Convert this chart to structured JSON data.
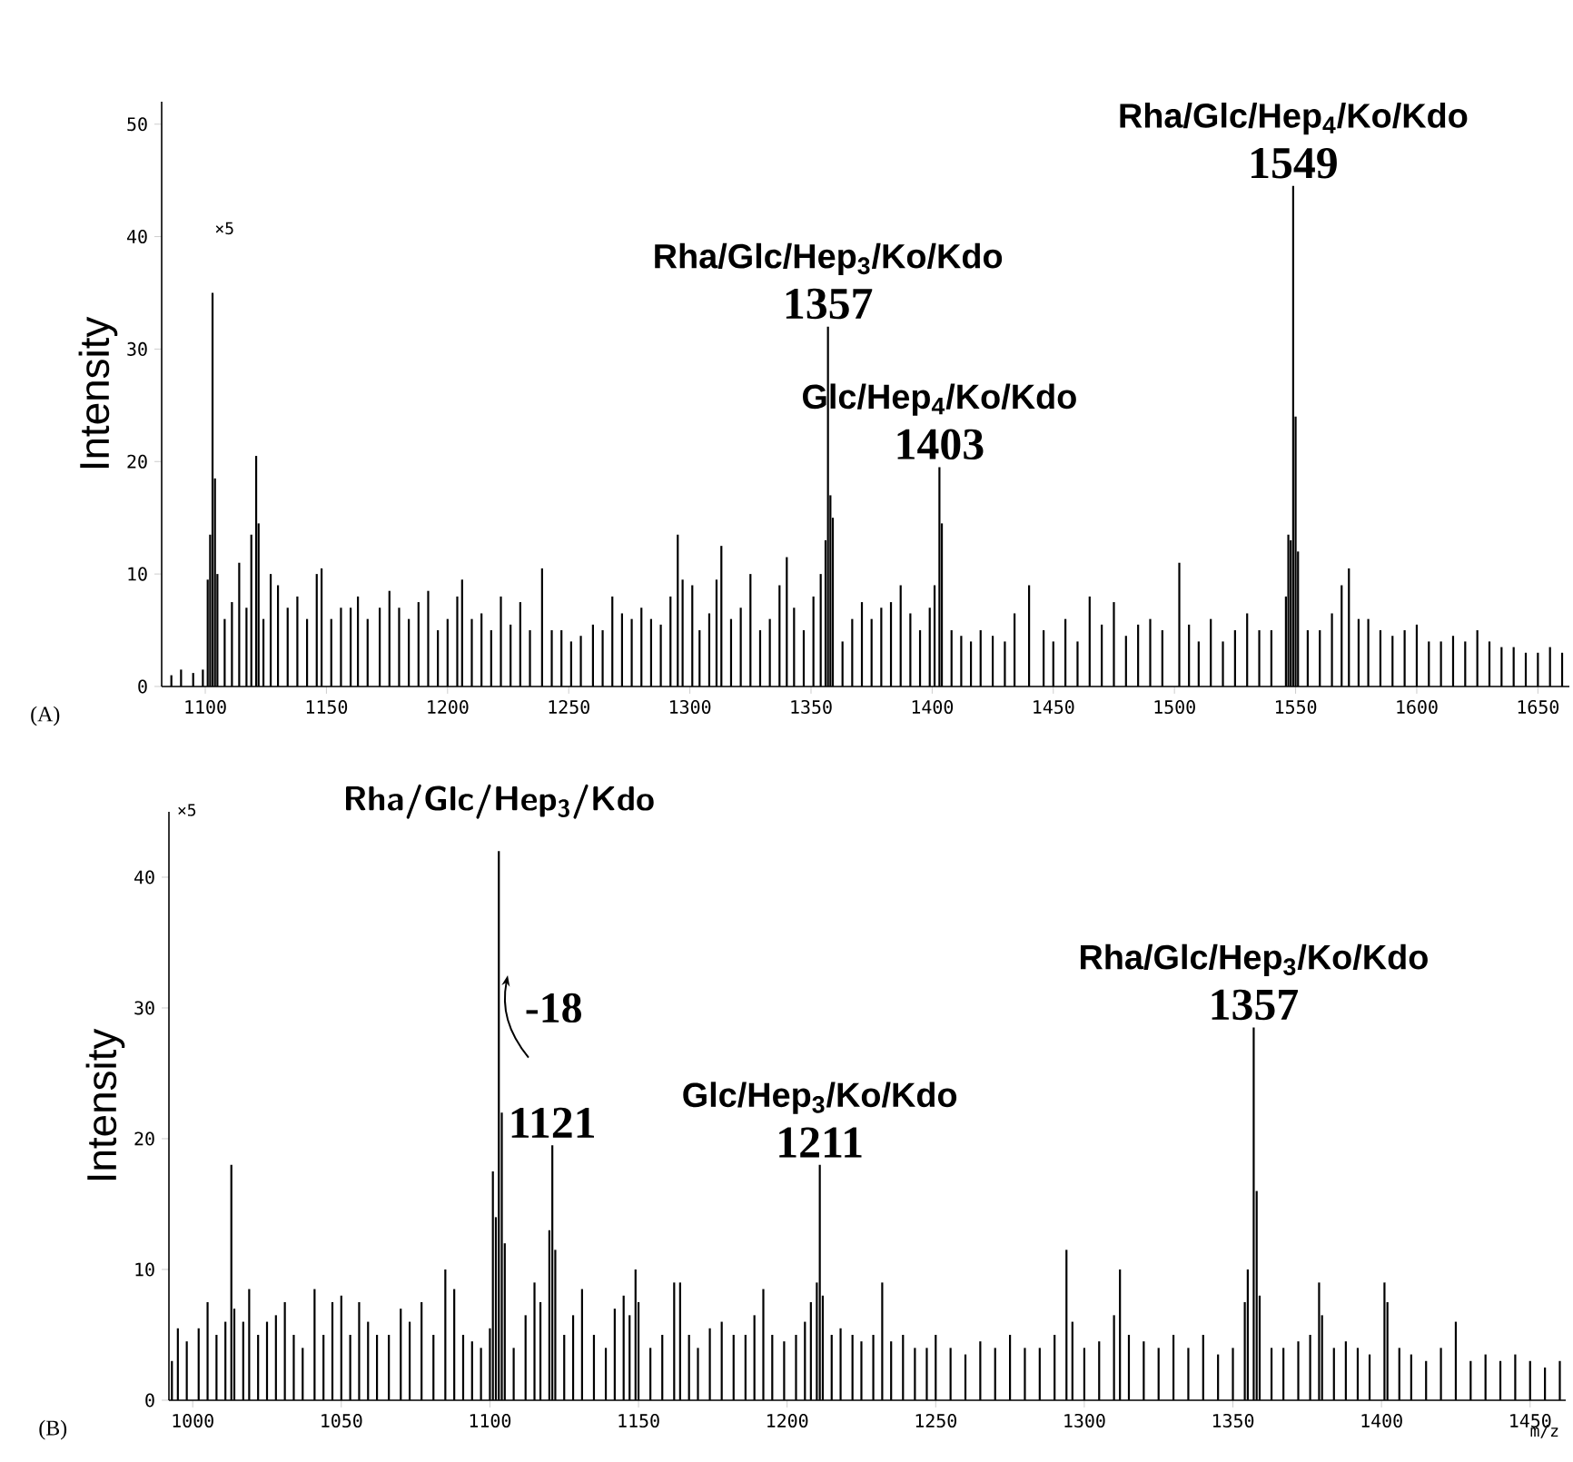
{
  "chart_data": [
    {
      "type": "bar",
      "ylabel": "Intensity",
      "color": "#000000",
      "xlim": [
        1082,
        1663
      ],
      "ylim": [
        0,
        52
      ],
      "xticks": [
        1100,
        1150,
        1200,
        1250,
        1300,
        1350,
        1400,
        1450,
        1500,
        1550,
        1600,
        1650
      ],
      "yticks": [
        0,
        10,
        20,
        30,
        40,
        50
      ],
      "x": [
        1086,
        1090,
        1095,
        1099,
        1101,
        1102,
        1103,
        1104,
        1105,
        1108,
        1111,
        1114,
        1117,
        1119,
        1121,
        1122,
        1124,
        1127,
        1130,
        1134,
        1138,
        1142,
        1146,
        1148,
        1152,
        1156,
        1160,
        1163,
        1167,
        1172,
        1176,
        1180,
        1184,
        1188,
        1192,
        1196,
        1200,
        1204,
        1206,
        1210,
        1214,
        1218,
        1222,
        1226,
        1230,
        1234,
        1239,
        1243,
        1247,
        1251,
        1255,
        1260,
        1264,
        1268,
        1272,
        1276,
        1280,
        1284,
        1288,
        1292,
        1295,
        1297,
        1301,
        1304,
        1308,
        1311,
        1313,
        1317,
        1321,
        1325,
        1329,
        1333,
        1337,
        1340,
        1343,
        1347,
        1351,
        1354,
        1356,
        1357,
        1358,
        1359,
        1363,
        1367,
        1371,
        1375,
        1379,
        1383,
        1387,
        1391,
        1395,
        1399,
        1401,
        1403,
        1404,
        1408,
        1412,
        1416,
        1420,
        1425,
        1430,
        1434,
        1440,
        1446,
        1450,
        1455,
        1460,
        1465,
        1470,
        1475,
        1480,
        1485,
        1490,
        1495,
        1502,
        1506,
        1510,
        1515,
        1520,
        1525,
        1530,
        1535,
        1540,
        1546,
        1547,
        1548,
        1549,
        1550,
        1551,
        1555,
        1560,
        1565,
        1569,
        1572,
        1576,
        1580,
        1585,
        1590,
        1595,
        1600,
        1605,
        1610,
        1615,
        1620,
        1625,
        1630,
        1635,
        1640,
        1645,
        1650,
        1655,
        1660
      ],
      "values": [
        1,
        1.5,
        1.2,
        1.5,
        9.5,
        13.5,
        35,
        18.5,
        10,
        6,
        7.5,
        11,
        7,
        13.5,
        20.5,
        14.5,
        6,
        10,
        9,
        7,
        8,
        6,
        10,
        10.5,
        6,
        7,
        7,
        8,
        6,
        7,
        8.5,
        7,
        6,
        7.5,
        8.5,
        5,
        6,
        8,
        9.5,
        6,
        6.5,
        5,
        8,
        5.5,
        7.5,
        5,
        10.5,
        5,
        5,
        4,
        4.5,
        5.5,
        5,
        8,
        6.5,
        6,
        7,
        6,
        5.5,
        8,
        13.5,
        9.5,
        9,
        5,
        6.5,
        9.5,
        12.5,
        6,
        7,
        10,
        5,
        6,
        9,
        11.5,
        7,
        5,
        8,
        10,
        13,
        32,
        17,
        15,
        4,
        6,
        7.5,
        6,
        7,
        7.5,
        9,
        6.5,
        5,
        7,
        9,
        19.5,
        14.5,
        5,
        4.5,
        4,
        5,
        4.5,
        4,
        6.5,
        9,
        5,
        4,
        6,
        4,
        8,
        5.5,
        7.5,
        4.5,
        5.5,
        6,
        5,
        11,
        5.5,
        4,
        6,
        4,
        5,
        6.5,
        5,
        5,
        8,
        13.5,
        13,
        44.5,
        24,
        12,
        5,
        5,
        6.5,
        9,
        10.5,
        6,
        6,
        5,
        4.5,
        5,
        5.5,
        4,
        4,
        4.5,
        4,
        5,
        4,
        3.5,
        3.5,
        3,
        3,
        3.5,
        3
      ],
      "annotations": [
        "×5",
        "(A)",
        {
          "text": "Rha/Glc/Hep$_{3}$/Ko/Kdo",
          "x": 1357,
          "y": 32
        },
        {
          "text": "1357",
          "x": 1357,
          "y": 32
        },
        {
          "text": "Glc/Hep$_{4}$/Ko/Kdo",
          "x": 1403,
          "y": 19.5
        },
        {
          "text": "1403",
          "x": 1403,
          "y": 19.5
        },
        {
          "text": "Rha/Glc/Hep$_{4}$/Ko/Kdo",
          "x": 1549,
          "y": 44.5
        },
        {
          "text": "1549",
          "x": 1549,
          "y": 44.5
        }
      ]
    },
    {
      "type": "bar",
      "ylabel": "Intensity",
      "xlabel": "m/z",
      "color": "#000000",
      "xlim": [
        992,
        1462
      ],
      "ylim": [
        0,
        45
      ],
      "xticks": [
        1000,
        1050,
        1100,
        1150,
        1200,
        1250,
        1300,
        1350,
        1400,
        1450
      ],
      "yticks": [
        0,
        10,
        20,
        30,
        40
      ],
      "x": [
        993,
        995,
        998,
        1002,
        1005,
        1008,
        1011,
        1013,
        1014,
        1017,
        1019,
        1022,
        1025,
        1028,
        1031,
        1034,
        1037,
        1041,
        1044,
        1047,
        1050,
        1053,
        1056,
        1059,
        1062,
        1066,
        1070,
        1073,
        1077,
        1081,
        1085,
        1088,
        1091,
        1094,
        1097,
        1100,
        1101,
        1102,
        1103,
        1104,
        1105,
        1108,
        1112,
        1115,
        1117,
        1120,
        1121,
        1122,
        1125,
        1128,
        1131,
        1135,
        1139,
        1142,
        1145,
        1147,
        1149,
        1150,
        1154,
        1158,
        1162,
        1164,
        1167,
        1170,
        1174,
        1178,
        1182,
        1186,
        1189,
        1192,
        1195,
        1199,
        1203,
        1206,
        1208,
        1210,
        1211,
        1212,
        1215,
        1218,
        1222,
        1225,
        1229,
        1232,
        1235,
        1239,
        1243,
        1247,
        1250,
        1255,
        1260,
        1265,
        1270,
        1275,
        1280,
        1285,
        1290,
        1294,
        1296,
        1300,
        1305,
        1310,
        1312,
        1315,
        1320,
        1325,
        1330,
        1335,
        1340,
        1345,
        1350,
        1354,
        1355,
        1357,
        1358,
        1359,
        1363,
        1367,
        1372,
        1376,
        1379,
        1380,
        1384,
        1388,
        1392,
        1396,
        1401,
        1402,
        1406,
        1410,
        1415,
        1420,
        1425,
        1430,
        1435,
        1440,
        1445,
        1450,
        1455,
        1460
      ],
      "values": [
        3,
        5.5,
        4.5,
        5.5,
        7.5,
        5,
        6,
        18,
        7,
        6,
        8.5,
        5,
        6,
        6.5,
        7.5,
        5,
        4,
        8.5,
        5,
        7.5,
        8,
        5,
        7.5,
        6,
        5,
        5,
        7,
        6,
        7.5,
        5,
        10,
        8.5,
        5,
        4.5,
        4,
        5.5,
        17.5,
        14,
        42,
        22,
        12,
        4,
        6.5,
        9,
        7.5,
        13,
        19.5,
        11.5,
        5,
        6.5,
        8.5,
        5,
        4,
        7,
        8,
        6.5,
        10,
        7.5,
        4,
        5,
        9,
        9,
        5,
        4,
        5.5,
        6,
        5,
        5,
        6.5,
        8.5,
        5,
        4.5,
        5,
        6,
        7.5,
        9,
        18,
        8,
        5,
        5.5,
        5,
        4.5,
        5,
        9,
        4.5,
        5,
        4,
        4,
        5,
        4,
        3.5,
        4.5,
        4,
        5,
        4,
        4,
        5,
        11.5,
        6,
        4,
        4.5,
        6.5,
        10,
        5,
        4.5,
        4,
        5,
        4,
        5,
        3.5,
        4,
        7.5,
        10,
        28.5,
        16,
        8,
        4,
        4,
        4.5,
        5,
        9,
        6.5,
        4,
        4.5,
        4,
        3.5,
        9,
        7.5,
        4,
        3.5,
        3,
        4,
        6,
        3,
        3.5,
        3,
        3.5,
        3,
        2.5,
        3
      ],
      "annotations": [
        "×5",
        "Rha/Glc/Hep$_{3}$/Kdo",
        "-18",
        "(B)",
        {
          "text": "1121",
          "x": 1121,
          "y": 19.5
        },
        {
          "text": "Glc/Hep$_{3}$/Ko/Kdo",
          "x": 1211,
          "y": 18
        },
        {
          "text": "1211",
          "x": 1211,
          "y": 18
        },
        {
          "text": "Rha/Glc/Hep$_{3}$/Ko/Kdo",
          "x": 1357,
          "y": 28.5
        },
        {
          "text": "1357",
          "x": 1357,
          "y": 28.5
        }
      ]
    }
  ]
}
